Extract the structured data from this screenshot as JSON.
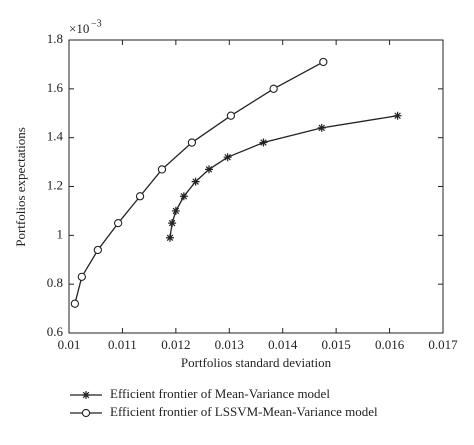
{
  "chart_data": {
    "type": "line",
    "xlabel": "Portfolios standard deviation",
    "ylabel": "Portfolios expectations",
    "y_multiplier_base": "×10",
    "y_multiplier_exponent": "−3",
    "xlim": [
      0.01,
      0.017
    ],
    "xticks": [
      0.01,
      0.011,
      0.012,
      0.013,
      0.014,
      0.015,
      0.016,
      0.017
    ],
    "ylim": [
      0.6,
      1.8
    ],
    "yticks": [
      0.6,
      0.8,
      1,
      1.2,
      1.4,
      1.6,
      1.8
    ],
    "grid": false,
    "legend": "below",
    "series": [
      {
        "name": "Efficient frontier of Mean-Variance model",
        "color": "#222222",
        "marker": "star",
        "x": [
          0.01189,
          0.01193,
          0.012,
          0.01215,
          0.01237,
          0.01262,
          0.01297,
          0.01364,
          0.01473,
          0.01615
        ],
        "values": [
          0.99,
          1.05,
          1.1,
          1.16,
          1.22,
          1.27,
          1.32,
          1.38,
          1.44,
          1.49
        ]
      },
      {
        "name": "Efficient frontier of LSSVM-Mean-Variance model",
        "color": "#222222",
        "marker": "circle",
        "x": [
          0.01011,
          0.01024,
          0.01054,
          0.01092,
          0.01133,
          0.01174,
          0.0123,
          0.01303,
          0.01383,
          0.01476
        ],
        "values": [
          0.72,
          0.83,
          0.94,
          1.05,
          1.16,
          1.27,
          1.38,
          1.49,
          1.6,
          1.71
        ]
      }
    ]
  }
}
